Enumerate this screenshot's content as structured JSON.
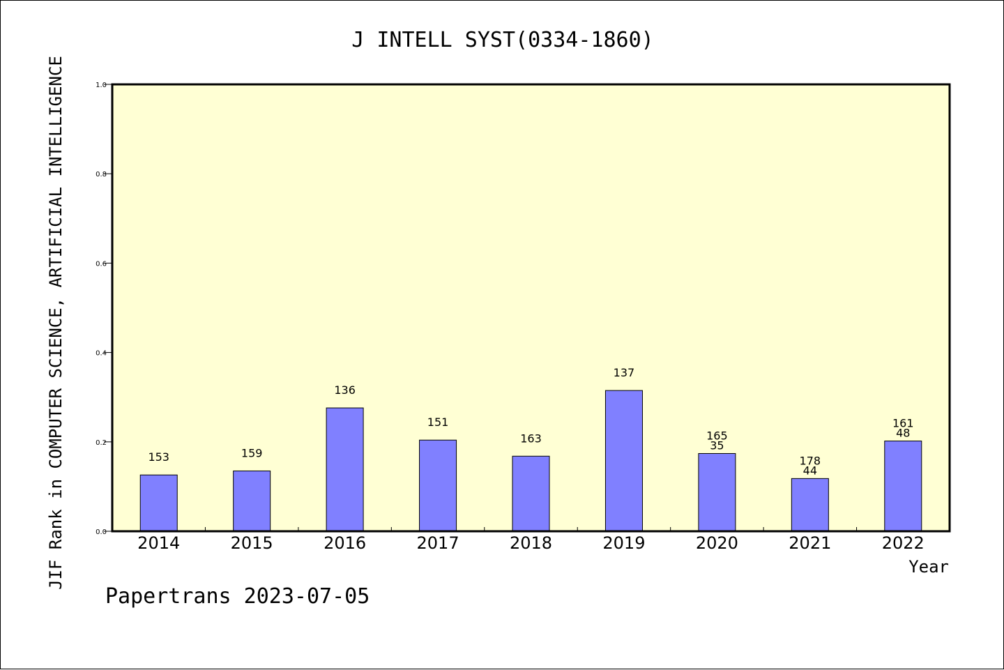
{
  "footer": "Papertrans 2023-07-05",
  "chart_data": {
    "type": "bar",
    "title": "J INTELL SYST(0334-1860)",
    "xlabel": "Year",
    "ylabel": "JIF Rank in COMPUTER SCIENCE, ARTIFICIAL INTELLIGENCE",
    "ylim": [
      0,
      1.0
    ],
    "yticks": [
      "0.0",
      "0.2",
      "0.4",
      "0.6",
      "0.8",
      "1.0"
    ],
    "categories": [
      "2014",
      "2015",
      "2016",
      "2017",
      "2018",
      "2019",
      "2020",
      "2021",
      "2022"
    ],
    "values": [
      0.126,
      0.135,
      0.276,
      0.204,
      0.168,
      0.315,
      0.174,
      0.118,
      0.202
    ],
    "labels_top": [
      "153",
      "159",
      "136",
      "151",
      "163",
      "137",
      "165",
      "178",
      "161"
    ],
    "labels_bottom": [
      "",
      "",
      "",
      "",
      "",
      "",
      "35",
      "44",
      "48"
    ],
    "grid": false,
    "plot_background": "#ffffd4",
    "bar_color": "#8080ff"
  }
}
